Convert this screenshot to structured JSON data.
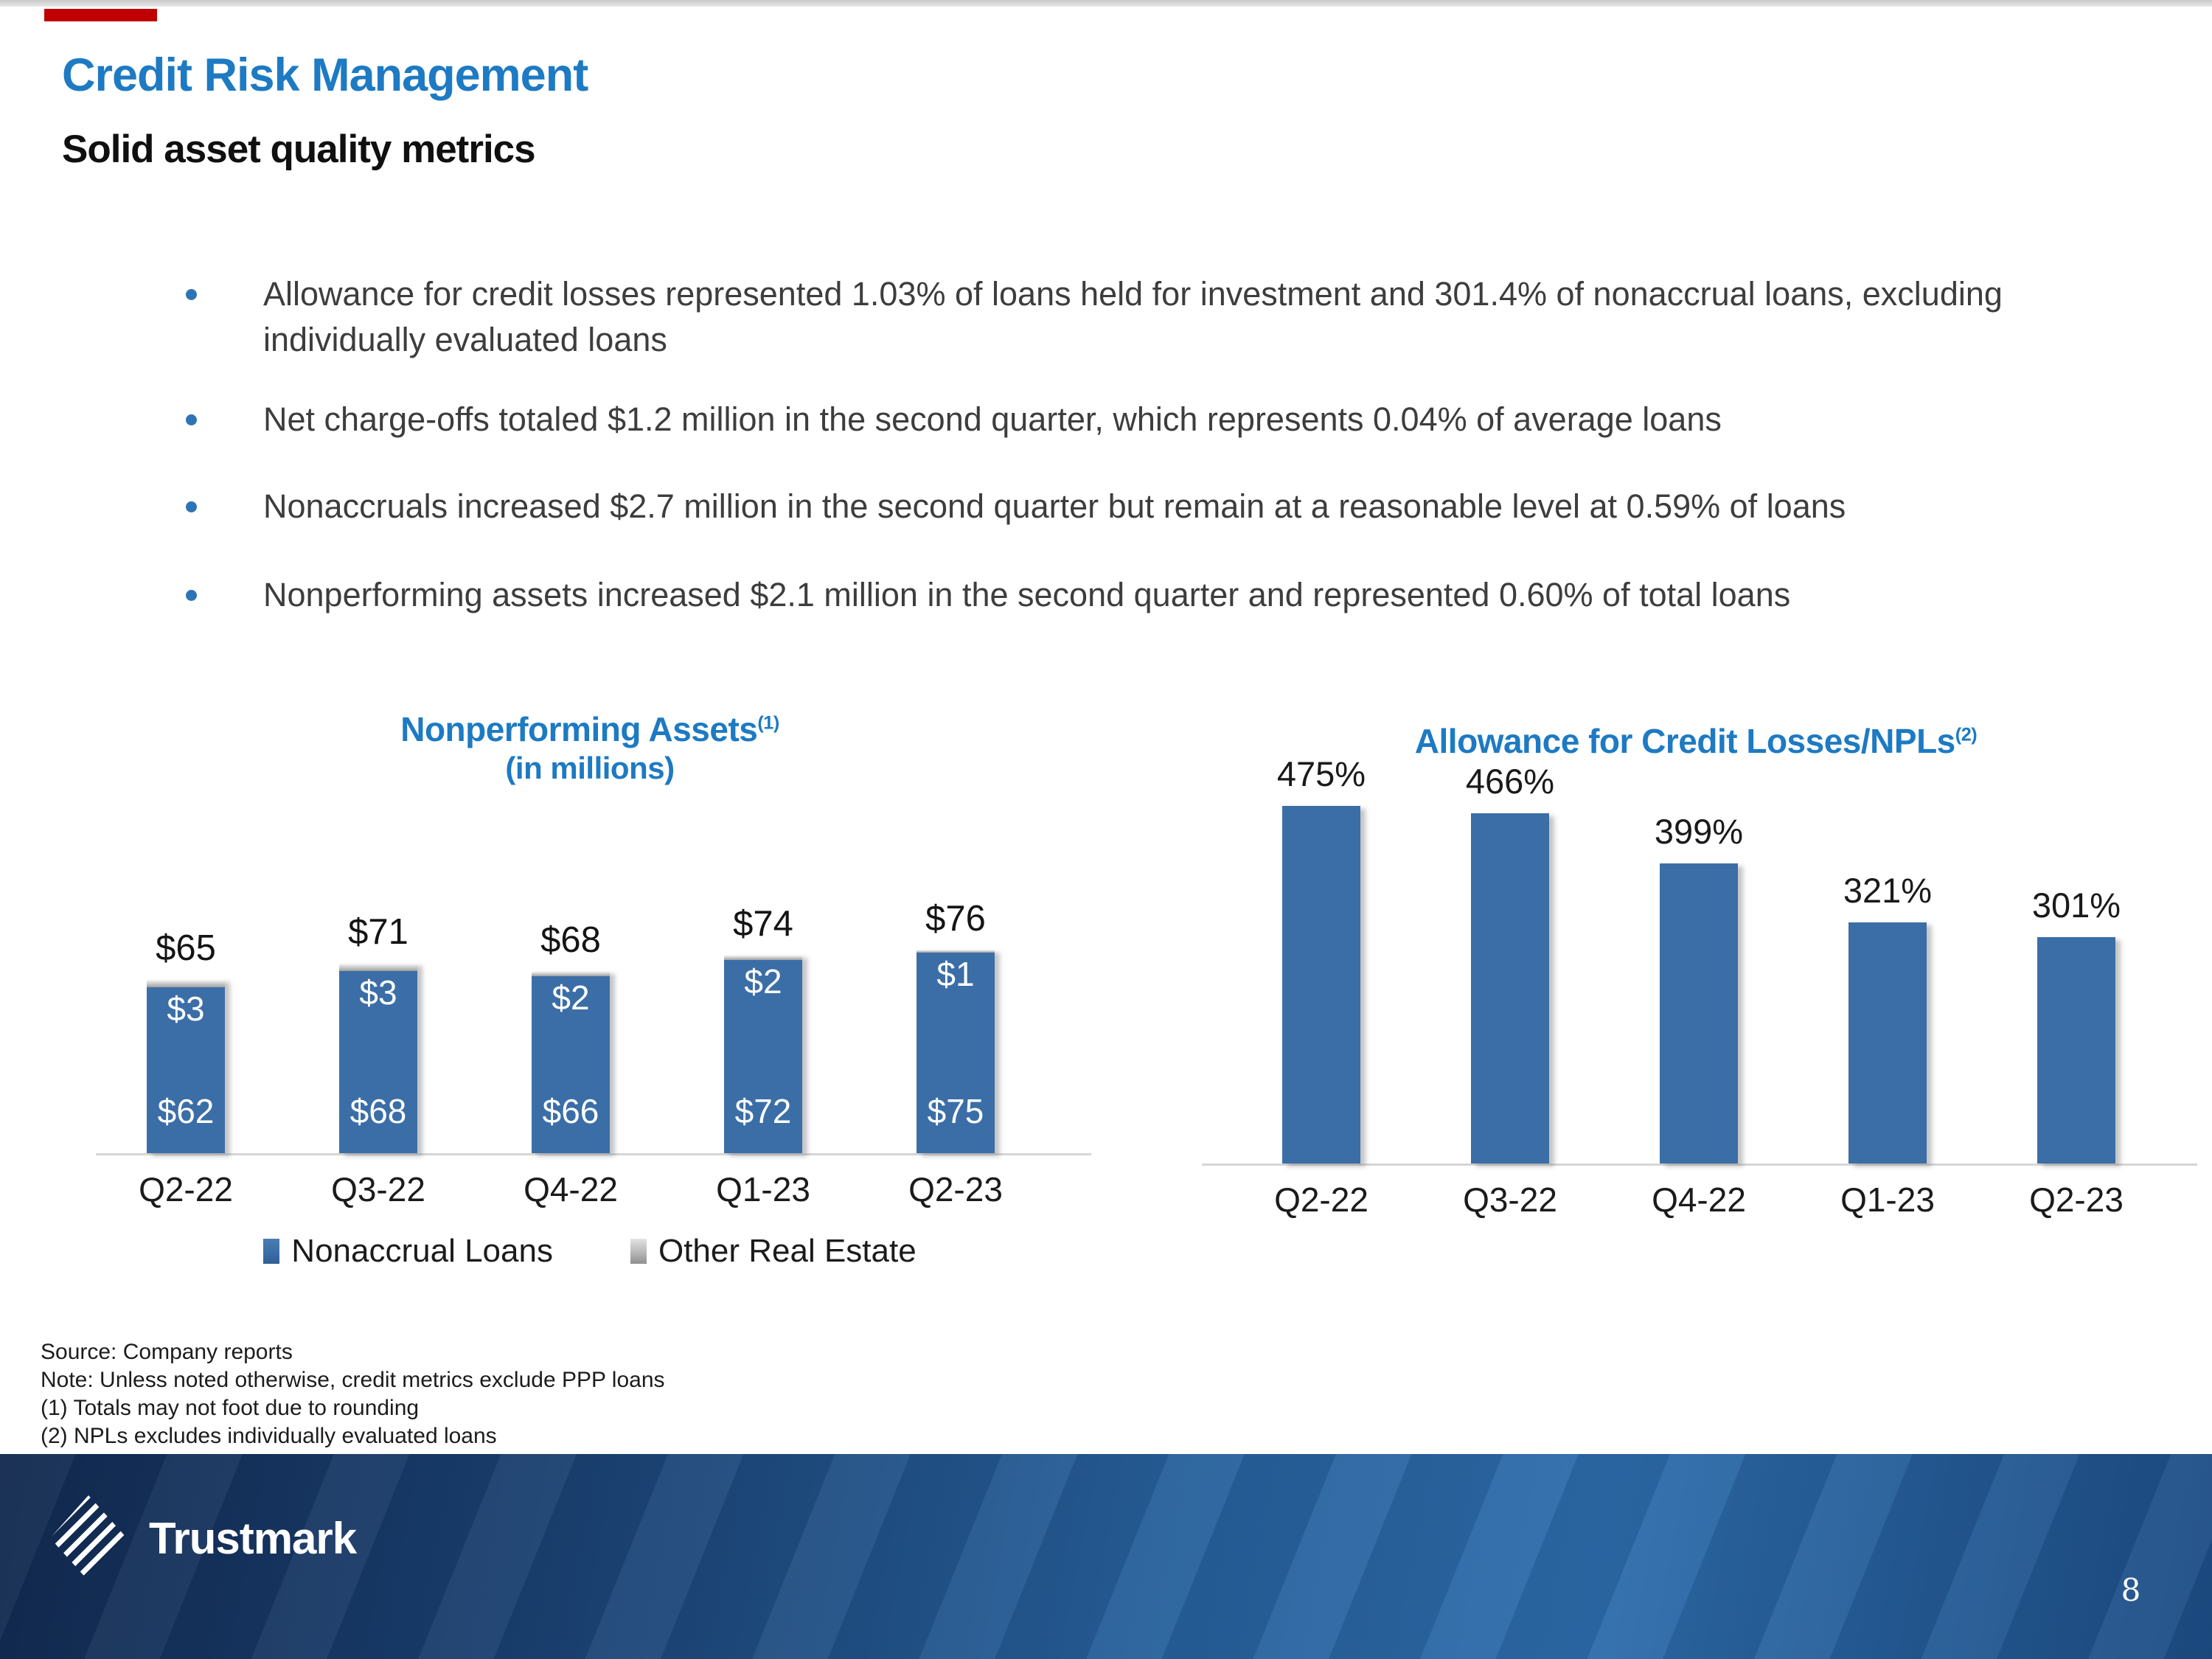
{
  "slide": {
    "title": "Credit Risk Management",
    "subtitle": "Solid asset quality metrics",
    "bullets": [
      "Allowance for credit losses represented 1.03% of loans held for investment and 301.4% of nonaccrual loans, excluding individually evaluated loans",
      "Net charge-offs totaled $1.2 million in the second quarter, which represents 0.04% of average loans",
      "Nonaccruals increased $2.7 million in the second quarter but remain at a reasonable level at 0.59% of loans",
      "Nonperforming assets increased $2.1 million in the second quarter and represented 0.60% of total loans"
    ],
    "footnotes": [
      "Source: Company reports",
      "Note: Unless noted otherwise, credit metrics exclude PPP loans",
      "(1) Totals may not foot due to rounding",
      "(2) NPLs excludes individually evaluated loans"
    ],
    "footer": {
      "logo_text": "Trustmark",
      "page_number": "8"
    }
  },
  "colors": {
    "accent_red": "#c00000",
    "title_blue": "#1d7ac3",
    "bar_blue": "#3b6ea7",
    "cap_gray": "#b3b3b3",
    "axis_gray": "#d6d6d6",
    "footer_navy": "#1a4070",
    "footer_steel_blue": "#2e6dac"
  },
  "chart_data": [
    {
      "type": "bar",
      "stacked": true,
      "title": "Nonperforming Assets",
      "title_superscript": "(1)",
      "subtitle": "(in millions)",
      "categories": [
        "Q2-22",
        "Q3-22",
        "Q4-22",
        "Q1-23",
        "Q2-23"
      ],
      "series": [
        {
          "name": "Nonaccrual Loans",
          "color": "#3b6ea7",
          "values": [
            62,
            68,
            66,
            72,
            75
          ],
          "labels": [
            "$62",
            "$68",
            "$66",
            "$72",
            "$75"
          ]
        },
        {
          "name": "Other Real Estate",
          "color": "#b3b3b3",
          "values": [
            3,
            3,
            2,
            2,
            1
          ],
          "labels": [
            "$3",
            "$3",
            "$2",
            "$2",
            "$1"
          ]
        }
      ],
      "totals": [
        65,
        71,
        68,
        74,
        76
      ],
      "total_labels": [
        "$65",
        "$71",
        "$68",
        "$74",
        "$76"
      ],
      "ylim": [
        0,
        85
      ],
      "grid": false,
      "legend_position": "bottom"
    },
    {
      "type": "bar",
      "stacked": false,
      "title": "Allowance for Credit Losses/NPLs",
      "title_superscript": "(2)",
      "categories": [
        "Q2-22",
        "Q3-22",
        "Q4-22",
        "Q1-23",
        "Q2-23"
      ],
      "values": [
        475,
        466,
        399,
        321,
        301
      ],
      "value_labels": [
        "475%",
        "466%",
        "399%",
        "321%",
        "301%"
      ],
      "ylim": [
        0,
        530
      ],
      "grid": false,
      "legend_position": "none"
    }
  ]
}
